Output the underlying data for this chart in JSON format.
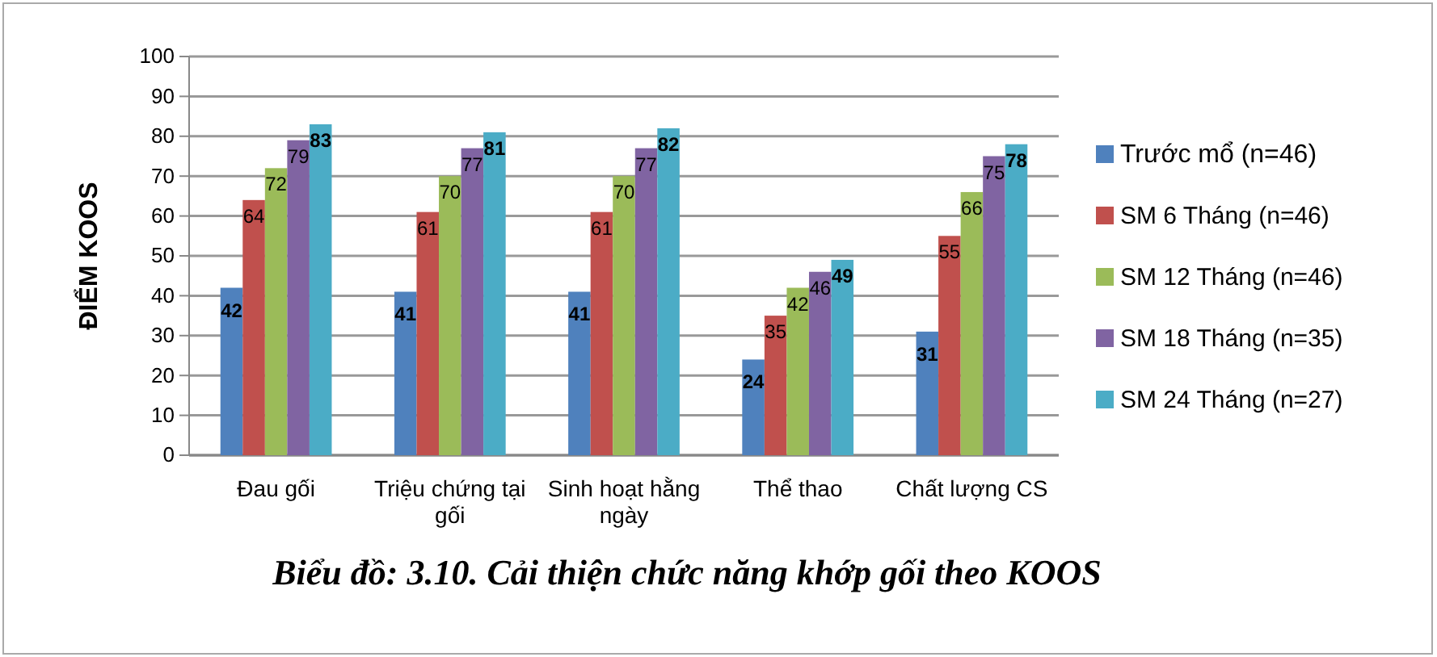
{
  "chart_data": {
    "type": "bar",
    "title": "Biểu đồ: 3.10. Cải thiện chức năng khớp gối theo KOOS",
    "ylabel": "ĐIỂM KOOS",
    "categories": [
      "Đau gối",
      "Triệu chứng tại gối",
      "Sinh hoạt hằng ngày",
      "Thể thao",
      "Chất lượng CS"
    ],
    "series": [
      {
        "name": "Trước mổ (n=46)",
        "color": "#4f81bd",
        "values": [
          42,
          41,
          41,
          24,
          31
        ]
      },
      {
        "name": "SM 6 Tháng (n=46)",
        "color": "#c0504d",
        "values": [
          64,
          61,
          61,
          35,
          55
        ]
      },
      {
        "name": "SM 12 Tháng (n=46)",
        "color": "#9bbb59",
        "values": [
          72,
          70,
          70,
          42,
          66
        ]
      },
      {
        "name": "SM 18 Tháng (n=35)",
        "color": "#8064a2",
        "values": [
          79,
          77,
          77,
          46,
          75
        ]
      },
      {
        "name": "SM 24 Tháng (n=27)",
        "color": "#4bacc6",
        "values": [
          83,
          81,
          82,
          49,
          78
        ]
      }
    ],
    "ylim": [
      0,
      100
    ],
    "yticks": [
      0,
      10,
      20,
      30,
      40,
      50,
      60,
      70,
      80,
      90,
      100
    ],
    "grid": "y",
    "legend": "right",
    "data_labels": true
  }
}
